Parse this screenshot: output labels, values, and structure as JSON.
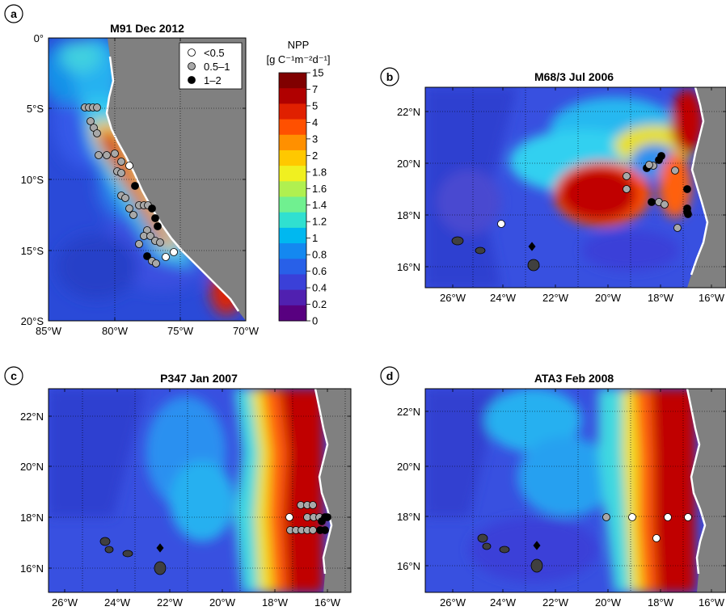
{
  "figure": {
    "panels": [
      {
        "letter": "a",
        "title": "M91 Dec 2012",
        "xticks": [
          "85°W",
          "80°W",
          "75°W",
          "70°W"
        ],
        "yticks": [
          "0°",
          "5°S",
          "10°S",
          "15°S",
          "20°S"
        ]
      },
      {
        "letter": "b",
        "title": "M68/3 Jul 2006",
        "xticks": [
          "26°W",
          "24°W",
          "22°W",
          "20°W",
          "18°W",
          "16°W"
        ],
        "yticks": [
          "22°N",
          "20°N",
          "18°N",
          "16°N"
        ]
      },
      {
        "letter": "c",
        "title": "P347 Jan 2007",
        "xticks": [
          "26°W",
          "24°W",
          "22°W",
          "20°W",
          "18°W",
          "16°W"
        ],
        "yticks": [
          "22°N",
          "20°N",
          "18°N",
          "16°N"
        ]
      },
      {
        "letter": "d",
        "title": "ATA3 Feb 2008",
        "xticks": [
          "26°W",
          "24°W",
          "22°W",
          "20°W",
          "18°W",
          "16°W"
        ],
        "yticks": [
          "22°N",
          "20°N",
          "18°N",
          "16°N"
        ]
      }
    ],
    "legend": {
      "entries": [
        {
          "label": "<0.5",
          "color": "#ffffff"
        },
        {
          "label": "0.5–1",
          "color": "#a8a8a8"
        },
        {
          "label": "1–2",
          "color": "#000000"
        }
      ]
    },
    "colorbar": {
      "title": "NPP",
      "unit_line": "[g C⁻¹m⁻²d⁻¹]",
      "labels": [
        "15",
        "7",
        "5",
        "4",
        "3",
        "2",
        "1.8",
        "1.6",
        "1.4",
        "1.2",
        "1",
        "0.8",
        "0.6",
        "0.4",
        "0.2",
        "0"
      ],
      "colors": [
        "#800000",
        "#b00000",
        "#e02000",
        "#ff5000",
        "#ff9000",
        "#ffc800",
        "#f0f020",
        "#b0f050",
        "#70f090",
        "#30e0d0",
        "#00b8f0",
        "#1488f0",
        "#2860e8",
        "#3a40d8",
        "#5020b0",
        "#580080"
      ]
    },
    "land_color": "#808080"
  }
}
